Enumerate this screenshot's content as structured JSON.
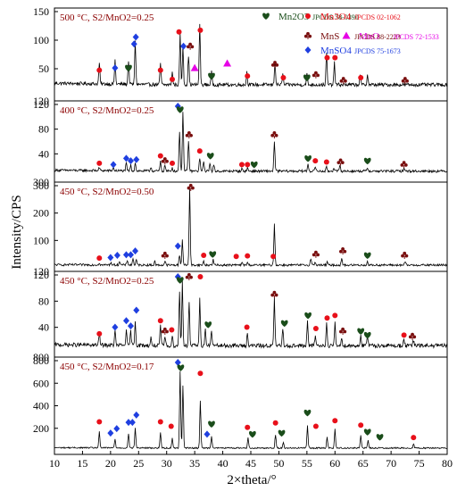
{
  "chart_data": {
    "type": "line",
    "xlabel": "2×theta/°",
    "ylabel": "Intensity/CPS",
    "xlim": [
      10,
      80
    ],
    "x_ticks": [
      "10",
      "15",
      "20",
      "25",
      "30",
      "35",
      "40",
      "45",
      "50",
      "55",
      "60",
      "65",
      "70",
      "75",
      "80"
    ],
    "legend": [
      {
        "symbol": "♥",
        "text": "Mn2O3",
        "ref": "JPCDS 78-0390",
        "color": "#1a4d1a"
      },
      {
        "symbol": "●",
        "text": "Mn3O4",
        "ref": "JPCDS 02-1062",
        "color": "#e8101a"
      },
      {
        "symbol": "▲",
        "text": "MnO",
        "ref": "JPCDS 72-1533",
        "color": "#e600e6"
      },
      {
        "symbol": "♣",
        "text": "MnS",
        "ref": "JPCDS 88-2223",
        "color": "#7a0f0f"
      },
      {
        "symbol": "◆",
        "text": "MnSO4",
        "ref": "JPCDS 75-1673",
        "color": "#1f3fe0"
      }
    ],
    "panels": [
      {
        "label": "500 °C, S2/MnO2=0.25",
        "ylim": [
          0,
          150
        ],
        "y_ticks": [
          "50",
          "100",
          "150"
        ],
        "bottom_tick": "120",
        "baseline": 22,
        "noise": 3,
        "peaks": [
          [
            18,
            38
          ],
          [
            20.8,
            42
          ],
          [
            23.2,
            42
          ],
          [
            24.4,
            78
          ],
          [
            28.9,
            38
          ],
          [
            31,
            22
          ],
          [
            32.4,
            90
          ],
          [
            32.9,
            68
          ],
          [
            33.9,
            52
          ],
          [
            35.9,
            108
          ],
          [
            38,
            22
          ],
          [
            44.3,
            22
          ],
          [
            49.3,
            42
          ],
          [
            50.7,
            18
          ],
          [
            55,
            20
          ],
          [
            58.5,
            55
          ],
          [
            59.9,
            38
          ],
          [
            64.5,
            18
          ],
          [
            65.8,
            18
          ]
        ]
      },
      {
        "label": "400 °C, S2/MnO2=0.25",
        "ylim": [
          0,
          120
        ],
        "y_ticks": [
          "40",
          "80",
          "120"
        ],
        "bottom_tick": "300",
        "baseline": 12,
        "noise": 2,
        "peaks": [
          [
            18,
            5
          ],
          [
            20.5,
            5
          ],
          [
            22.8,
            12
          ],
          [
            23.6,
            9
          ],
          [
            24.4,
            14
          ],
          [
            27.2,
            7
          ],
          [
            28.9,
            15
          ],
          [
            29.7,
            10
          ],
          [
            31,
            6
          ],
          [
            32.3,
            65
          ],
          [
            32.9,
            97
          ],
          [
            33.9,
            50
          ],
          [
            35.9,
            22
          ],
          [
            36.6,
            15
          ],
          [
            37.7,
            14
          ],
          [
            38.4,
            10
          ],
          [
            43.4,
            4
          ],
          [
            44.4,
            5
          ],
          [
            49.2,
            48
          ],
          [
            55.2,
            12
          ],
          [
            56.5,
            8
          ],
          [
            58.5,
            6
          ],
          [
            59.8,
            6
          ],
          [
            60.9,
            9
          ],
          [
            65.8,
            6
          ],
          [
            72.3,
            5
          ]
        ]
      },
      {
        "label": "450 °C, S2/MnO2=0.50",
        "ylim": [
          0,
          300
        ],
        "y_ticks": [
          "100",
          "200",
          "300"
        ],
        "bottom_tick": "120",
        "baseline": 10,
        "noise": 4,
        "peaks": [
          [
            18,
            8
          ],
          [
            20.1,
            10
          ],
          [
            21.6,
            14
          ],
          [
            23,
            18
          ],
          [
            24,
            24
          ],
          [
            24.6,
            18
          ],
          [
            27.9,
            14
          ],
          [
            29.7,
            15
          ],
          [
            32.3,
            38
          ],
          [
            32.8,
            95
          ],
          [
            34.1,
            285
          ],
          [
            36.6,
            14
          ],
          [
            38.3,
            20
          ],
          [
            43.4,
            10
          ],
          [
            44.4,
            10
          ],
          [
            49.2,
            150
          ],
          [
            55.7,
            25
          ],
          [
            56.5,
            12
          ],
          [
            58.6,
            10
          ],
          [
            61.2,
            25
          ],
          [
            65.8,
            12
          ],
          [
            72.5,
            12
          ]
        ]
      },
      {
        "label": "450 °C, S2/MnO2=0.25",
        "ylim": [
          0,
          120
        ],
        "y_ticks": [
          "40",
          "80",
          "120"
        ],
        "bottom_tick": "800",
        "baseline": 12,
        "noise": 3,
        "peaks": [
          [
            18,
            18
          ],
          [
            20.8,
            22
          ],
          [
            22.8,
            22
          ],
          [
            23.6,
            22
          ],
          [
            24.4,
            38
          ],
          [
            27.2,
            12
          ],
          [
            28.9,
            30
          ],
          [
            29.7,
            14
          ],
          [
            31,
            15
          ],
          [
            32.3,
            85
          ],
          [
            32.8,
            100
          ],
          [
            34,
            68
          ],
          [
            35.9,
            72
          ],
          [
            36.9,
            26
          ],
          [
            38,
            24
          ],
          [
            44.4,
            20
          ],
          [
            49.2,
            72
          ],
          [
            50.7,
            24
          ],
          [
            55.1,
            36
          ],
          [
            56.5,
            18
          ],
          [
            58.5,
            35
          ],
          [
            60,
            34
          ],
          [
            61.2,
            12
          ],
          [
            64.6,
            16
          ],
          [
            65.8,
            14
          ],
          [
            72.3,
            11
          ],
          [
            74,
            8
          ]
        ]
      },
      {
        "label": "450 °C, S2/MnO2=0.17",
        "ylim": [
          0,
          800
        ],
        "y_ticks": [
          "200",
          "400",
          "600",
          "800"
        ],
        "bottom_tick": "",
        "baseline": 25,
        "noise": 6,
        "peaks": [
          [
            18,
            140
          ],
          [
            20.8,
            80
          ],
          [
            23.2,
            130
          ],
          [
            24.4,
            180
          ],
          [
            28.9,
            140
          ],
          [
            31,
            90
          ],
          [
            32.4,
            680
          ],
          [
            32.9,
            560
          ],
          [
            36,
            420
          ],
          [
            38,
            110
          ],
          [
            44.5,
            90
          ],
          [
            49.4,
            120
          ],
          [
            50.8,
            55
          ],
          [
            55.1,
            200
          ],
          [
            58.6,
            100
          ],
          [
            60,
            170
          ],
          [
            64.6,
            110
          ],
          [
            65.9,
            70
          ],
          [
            74,
            40
          ]
        ]
      }
    ],
    "markers": [
      {
        "panel": 0,
        "items": [
          [
            "Mn3O4",
            18,
            38
          ],
          [
            "MnSO4",
            20.8,
            42
          ],
          [
            "Mn2O3",
            23.2,
            42
          ],
          [
            "MnSO4",
            24.2,
            84
          ],
          [
            "MnSO4",
            24.5,
            96
          ],
          [
            "Mn3O4",
            28.9,
            38
          ],
          [
            "Mn3O4",
            31,
            22
          ],
          [
            "Mn3O4",
            32.2,
            105
          ],
          [
            "MnSO4",
            33,
            80
          ],
          [
            "MnS",
            34.2,
            80
          ],
          [
            "MnO",
            35,
            42
          ],
          [
            "Mn3O4",
            36,
            108
          ],
          [
            "Mn2O3",
            38,
            28
          ],
          [
            "MnO",
            40.8,
            50
          ],
          [
            "Mn3O4",
            44.4,
            28
          ],
          [
            "MnS",
            49.3,
            48
          ],
          [
            "Mn3O4",
            50.8,
            25
          ],
          [
            "Mn2O3",
            55,
            25
          ],
          [
            "MnS",
            56.6,
            30
          ],
          [
            "Mn3O4",
            58.6,
            60
          ],
          [
            "Mn3O4",
            60,
            60
          ],
          [
            "MnS",
            61.5,
            20
          ],
          [
            "Mn3O4",
            64.6,
            25
          ],
          [
            "MnS",
            72.5,
            20
          ]
        ]
      },
      {
        "panel": 1,
        "items": [
          [
            "Mn3O4",
            18,
            16
          ],
          [
            "MnSO4",
            20.5,
            14
          ],
          [
            "MnSO4",
            22.8,
            24
          ],
          [
            "MnSO4",
            23.6,
            20
          ],
          [
            "MnSO4",
            24.6,
            22
          ],
          [
            "Mn3O4",
            28.9,
            28
          ],
          [
            "MnS",
            29.7,
            20
          ],
          [
            "Mn3O4",
            31,
            16
          ],
          [
            "MnSO4",
            32,
            112
          ],
          [
            "Mn2O3",
            32.4,
            103
          ],
          [
            "MnS",
            34,
            62
          ],
          [
            "Mn3O4",
            35.9,
            36
          ],
          [
            "Mn2O3",
            37.8,
            28
          ],
          [
            "Mn3O4",
            43.4,
            14
          ],
          [
            "Mn3O4",
            44.4,
            14
          ],
          [
            "Mn2O3",
            45.6,
            14
          ],
          [
            "MnS",
            49.2,
            62
          ],
          [
            "Mn2O3",
            55.2,
            24
          ],
          [
            "Mn3O4",
            56.5,
            20
          ],
          [
            "Mn3O4",
            58.5,
            18
          ],
          [
            "MnS",
            61,
            18
          ],
          [
            "Mn2O3",
            65.8,
            20
          ],
          [
            "MnS",
            72.3,
            14
          ]
        ]
      },
      {
        "panel": 2,
        "items": [
          [
            "Mn3O4",
            18,
            16
          ],
          [
            "MnSO4",
            20,
            18
          ],
          [
            "MnSO4",
            21.2,
            26
          ],
          [
            "MnSO4",
            22.8,
            28
          ],
          [
            "MnSO4",
            23.6,
            28
          ],
          [
            "MnSO4",
            24.4,
            42
          ],
          [
            "MnS",
            29.7,
            26
          ],
          [
            "MnSO4",
            32,
            60
          ],
          [
            "MnS",
            34.3,
            298
          ],
          [
            "Mn3O4",
            36.6,
            26
          ],
          [
            "Mn2O3",
            38.2,
            30
          ],
          [
            "Mn3O4",
            42.4,
            22
          ],
          [
            "Mn3O4",
            44.4,
            24
          ],
          [
            "Mn3O4",
            49,
            22
          ],
          [
            "MnS",
            56.6,
            30
          ],
          [
            "MnS",
            61.4,
            42
          ],
          [
            "Mn2O3",
            65.8,
            26
          ],
          [
            "MnS",
            72.4,
            26
          ]
        ]
      },
      {
        "panel": 3,
        "items": [
          [
            "Mn3O4",
            18,
            22
          ],
          [
            "MnSO4",
            20.8,
            32
          ],
          [
            "MnSO4",
            22.8,
            42
          ],
          [
            "MnSO4",
            23.6,
            34
          ],
          [
            "MnSO4",
            24.6,
            58
          ],
          [
            "Mn3O4",
            28.9,
            42
          ],
          [
            "MnS",
            29.7,
            26
          ],
          [
            "Mn3O4",
            30.9,
            28
          ],
          [
            "MnSO4",
            32,
            116
          ],
          [
            "Mn2O3",
            32.4,
            104
          ],
          [
            "MnS",
            34,
            110
          ],
          [
            "Mn3O4",
            36,
            110
          ],
          [
            "Mn2O3",
            37.4,
            36
          ],
          [
            "Mn3O4",
            44.3,
            32
          ],
          [
            "MnS",
            49.2,
            82
          ],
          [
            "Mn2O3",
            51,
            38
          ],
          [
            "Mn2O3",
            55.2,
            50
          ],
          [
            "Mn3O4",
            56.6,
            30
          ],
          [
            "Mn3O4",
            58.6,
            46
          ],
          [
            "Mn3O4",
            60,
            50
          ],
          [
            "MnS",
            61.4,
            26
          ],
          [
            "Mn2O3",
            64.6,
            26
          ],
          [
            "Mn2O3",
            65.8,
            20
          ],
          [
            "Mn3O4",
            72.3,
            20
          ],
          [
            "MnS",
            73.8,
            18
          ]
        ]
      },
      {
        "panel": 4,
        "items": [
          [
            "Mn3O4",
            18,
            210
          ],
          [
            "MnSO4",
            20,
            110
          ],
          [
            "MnSO4",
            21.1,
            150
          ],
          [
            "MnSO4",
            23.2,
            205
          ],
          [
            "MnSO4",
            23.9,
            205
          ],
          [
            "MnSO4",
            24.6,
            270
          ],
          [
            "Mn3O4",
            28.9,
            210
          ],
          [
            "Mn3O4",
            30.8,
            170
          ],
          [
            "MnSO4",
            32,
            750
          ],
          [
            "Mn2O3",
            32.5,
            690
          ],
          [
            "Mn3O4",
            36,
            640
          ],
          [
            "MnSO4",
            37.2,
            100
          ],
          [
            "Mn2O3",
            38,
            190
          ],
          [
            "Mn3O4",
            44.4,
            160
          ],
          [
            "Mn2O3",
            45.3,
            100
          ],
          [
            "Mn3O4",
            49.4,
            200
          ],
          [
            "Mn2O3",
            50.5,
            110
          ],
          [
            "Mn2O3",
            55.1,
            290
          ],
          [
            "Mn3O4",
            56.6,
            170
          ],
          [
            "Mn3O4",
            60,
            220
          ],
          [
            "Mn3O4",
            64.6,
            180
          ],
          [
            "Mn2O3",
            65.8,
            120
          ],
          [
            "Mn2O3",
            68,
            75
          ],
          [
            "Mn3O4",
            74,
            70
          ]
        ]
      }
    ]
  }
}
